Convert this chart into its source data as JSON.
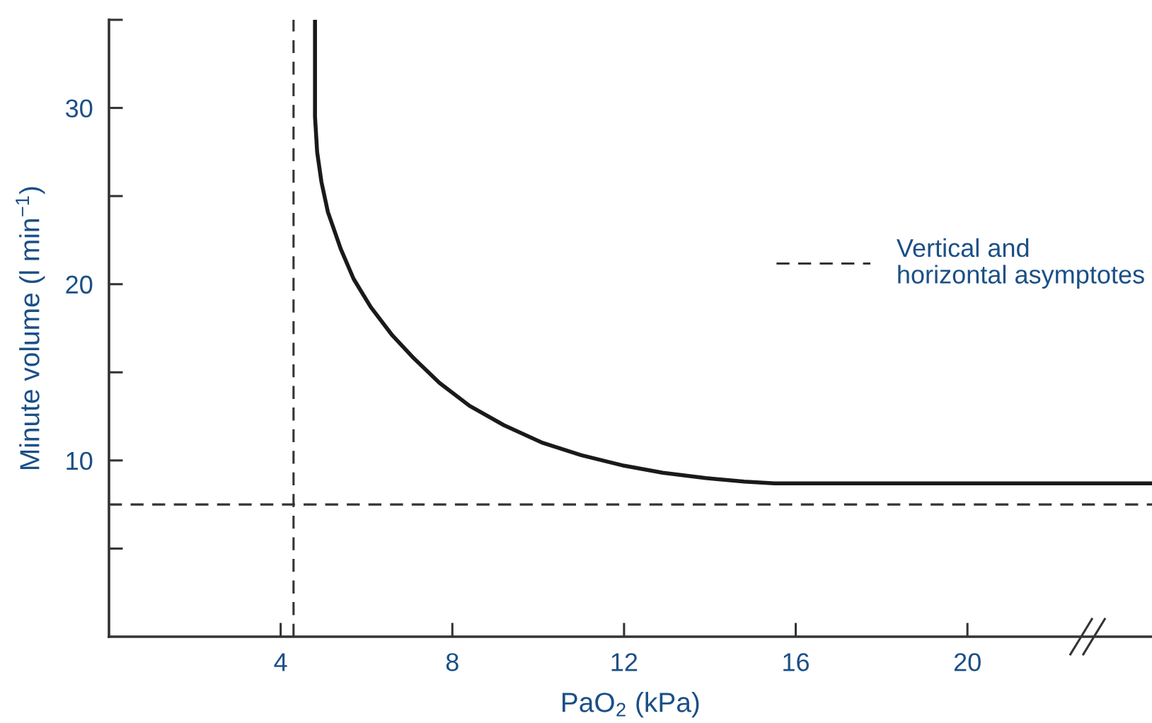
{
  "chart_data": {
    "type": "line",
    "xlabel": "PaO$_{2}$ (kPa)",
    "ylabel": "Minute volume (l min$^{−1}$)",
    "series": [
      {
        "color": "#1a1a1a",
        "x": [
          4.8,
          4.8,
          4.85,
          4.95,
          5.1,
          5.4,
          5.7,
          6.1,
          6.6,
          7.1,
          7.7,
          8.4,
          9.2,
          10.1,
          11.0,
          12.0,
          12.9,
          13.9,
          14.8,
          15.5,
          24.3
        ],
        "values": [
          35,
          29.5,
          27.5,
          25.8,
          24.1,
          22,
          20.3,
          18.7,
          17.1,
          15.8,
          14.4,
          13.1,
          12,
          11.0,
          10.3,
          9.7,
          9.3,
          9.0,
          8.8,
          8.7,
          8.7
        ]
      }
    ],
    "ref_lines": [
      {
        "axis": "x",
        "value": 4.3,
        "color": "#333333",
        "line_style": "dashed"
      },
      {
        "axis": "y",
        "value": 7.5,
        "color": "#333333",
        "line_style": "dashed"
      }
    ],
    "xlim": [
      0,
      24.3
    ],
    "ylim": [
      0,
      35
    ],
    "xticks": [
      4,
      8,
      12,
      16,
      20
    ],
    "yticks": [
      {
        "value": 5,
        "label": null
      },
      10,
      {
        "value": 15,
        "label": null
      },
      20,
      {
        "value": 25,
        "label": null
      },
      30,
      {
        "value": 35,
        "label": null
      }
    ],
    "annotations": [
      "Vertical and\nhorizontal asymptotes"
    ],
    "grid": false,
    "marker": "none",
    "line_style": "solid"
  }
}
